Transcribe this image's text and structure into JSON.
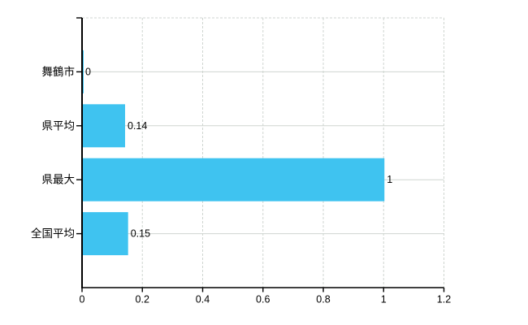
{
  "chart_data": {
    "type": "bar",
    "orientation": "horizontal",
    "title": "",
    "xlabel": "",
    "ylabel": "",
    "categories": [
      "舞鶴市",
      "県平均",
      "県最大",
      "全国平均"
    ],
    "values": [
      0,
      0.14,
      1,
      0.15
    ],
    "value_labels": [
      "0",
      "0.14",
      "1",
      "0.15"
    ],
    "x_tick_values": [
      0,
      0.2,
      0.4,
      0.6,
      0.8,
      1,
      1.2
    ],
    "x_tick_labels": [
      "0",
      "0.2",
      "0.4",
      "0.6",
      "0.8",
      "1",
      "1.2"
    ],
    "xlim": [
      0,
      1.2
    ],
    "grid": "on",
    "legend": "off",
    "colors": {
      "bar": "#3fc3f0",
      "axis": "#000000",
      "grid": "#cfd5d0",
      "text": "#000000",
      "background": "#ffffff"
    }
  }
}
